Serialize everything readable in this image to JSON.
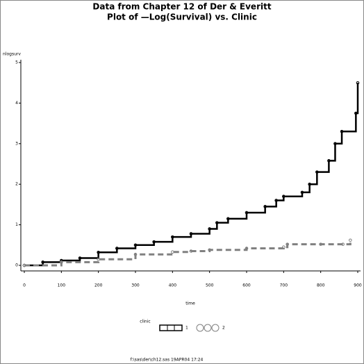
{
  "chart_data": {
    "type": "line",
    "title": "Data from Chapter 12 of Der & Everitt",
    "subtitle": "Plot of —Log(Survival) vs. Clinic",
    "ylabel": "nlogsurv",
    "xlabel": "time",
    "legend_title": "clinic",
    "footnote": "f:\\sas\\der\\ch12.sas 19APR04 17:24",
    "xlim": [
      0,
      900
    ],
    "xticks": [
      0,
      100,
      200,
      300,
      400,
      500,
      600,
      700,
      800,
      900
    ],
    "ylim": [
      0,
      5
    ],
    "yticks": [
      0,
      1,
      2,
      3,
      4,
      5
    ],
    "series": [
      {
        "name": "1",
        "color": "#000000",
        "dash": false,
        "x": [
          0,
          50,
          100,
          150,
          200,
          250,
          300,
          350,
          400,
          450,
          500,
          520,
          550,
          600,
          650,
          680,
          700,
          750,
          770,
          790,
          822,
          839,
          857,
          895,
          900
        ],
        "values": [
          0,
          0.08,
          0.12,
          0.18,
          0.32,
          0.42,
          0.5,
          0.58,
          0.7,
          0.78,
          0.9,
          1.05,
          1.15,
          1.3,
          1.45,
          1.6,
          1.7,
          1.8,
          2.0,
          2.3,
          2.58,
          3.0,
          3.3,
          3.75,
          4.5
        ]
      },
      {
        "name": "2",
        "color": "#808080",
        "dash": true,
        "x": [
          0,
          100,
          200,
          300,
          400,
          450,
          500,
          600,
          700,
          710,
          800,
          860,
          880
        ],
        "values": [
          0,
          0.08,
          0.15,
          0.27,
          0.33,
          0.35,
          0.38,
          0.42,
          0.45,
          0.52,
          0.52,
          0.52,
          0.62
        ]
      }
    ]
  }
}
